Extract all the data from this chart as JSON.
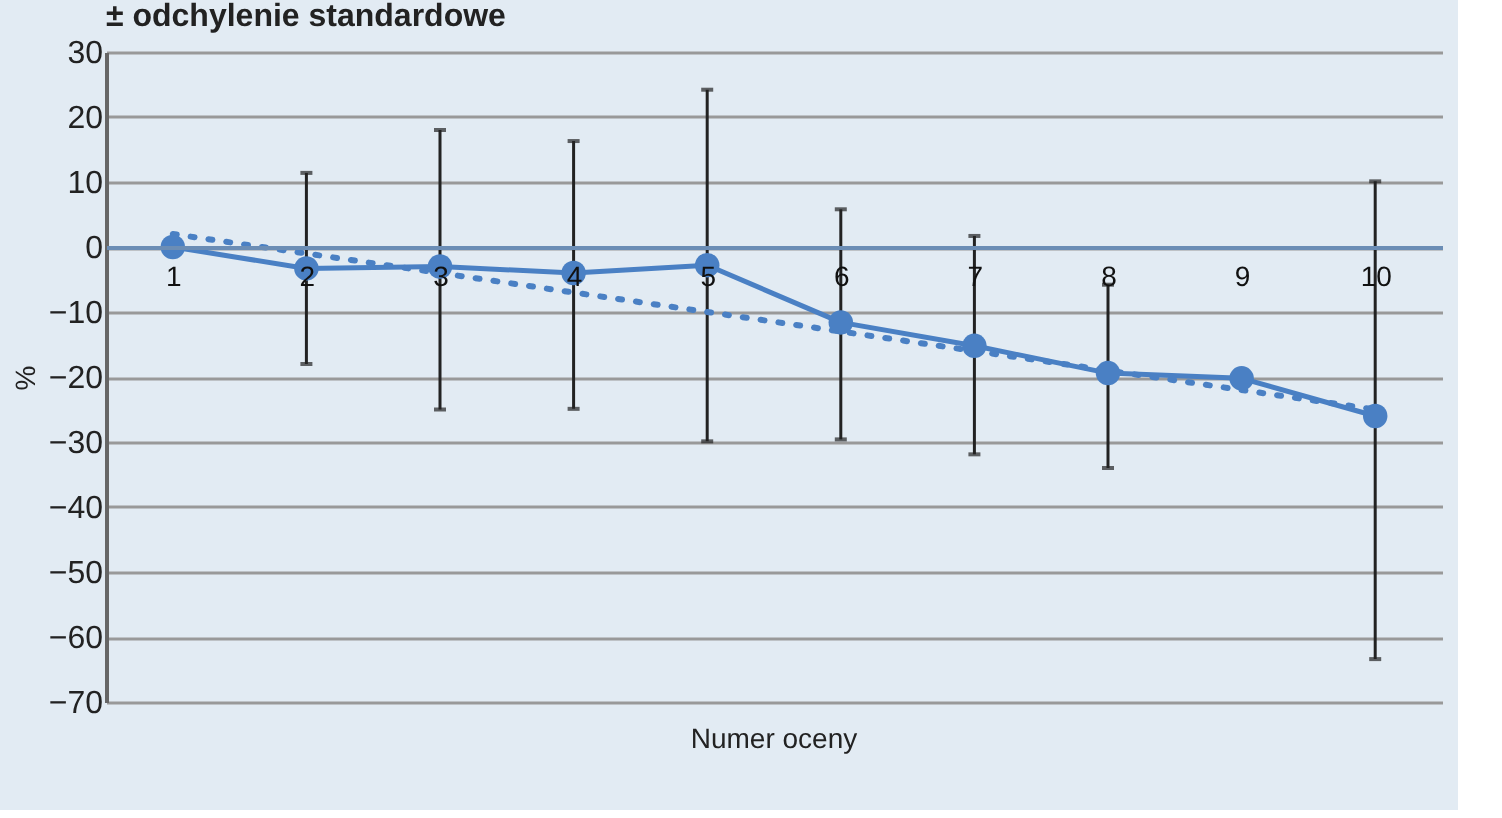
{
  "chart_data": {
    "type": "line",
    "title": "± odchylenie standardowe",
    "xlabel": "Numer oceny",
    "ylabel": "%",
    "x": [
      1,
      2,
      3,
      4,
      5,
      6,
      7,
      8,
      9,
      10
    ],
    "xlim": [
      0.5,
      10.5
    ],
    "xticks": [
      1,
      2,
      3,
      4,
      5,
      6,
      7,
      8,
      9,
      10
    ],
    "ylim": [
      -70,
      30
    ],
    "yticks": [
      -70,
      -60,
      -50,
      -40,
      -30,
      -20,
      -10,
      0,
      10,
      20,
      30
    ],
    "grid": "y",
    "series": [
      {
        "color": "#4a80c4",
        "marker": "circle",
        "line_style": "solid",
        "values": [
          0,
          -3.3,
          -3,
          -4,
          -2.8,
          -11.6,
          -15.2,
          -19.4,
          -20.2,
          -26
        ],
        "errors": [
          null,
          [
            -18,
            11.4
          ],
          [
            -25,
            18
          ],
          [
            -24.9,
            16.3
          ],
          [
            -29.9,
            24.2
          ],
          [
            -29.6,
            5.8
          ],
          [
            -31.9,
            1.7
          ],
          [
            -34,
            -5.8
          ],
          null,
          [
            -63.4,
            10.1
          ]
        ]
      },
      {
        "type": "line",
        "color": "#4a80c4",
        "marker": "none",
        "line_style": "dotted",
        "x": [
          1,
          10
        ],
        "values": [
          2,
          -25
        ]
      }
    ]
  }
}
